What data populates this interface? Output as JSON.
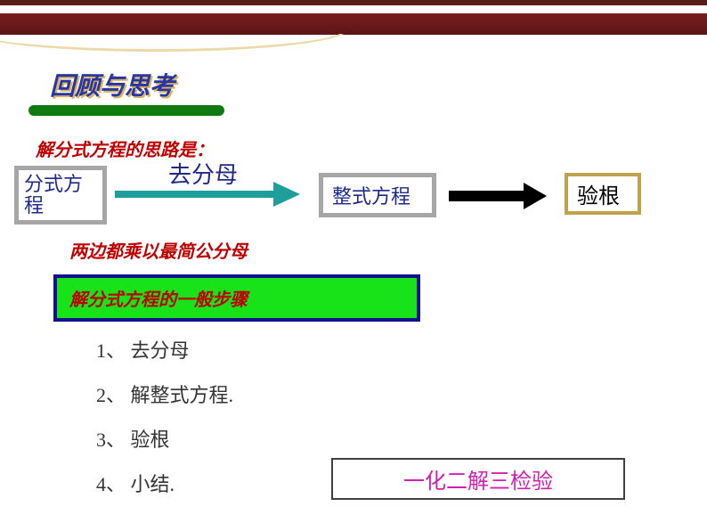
{
  "header": {
    "top_stripe_color": "#5c1b1b",
    "main_stripe_color": "#7a1f1f",
    "arc_color": "#ecd9a7"
  },
  "title": {
    "text": "回顾与思考",
    "color": "#2935a0",
    "shadow_color": "#d9b562",
    "fontsize": 28,
    "underline_color": "#0f7a0f"
  },
  "intro": {
    "text": "解分式方程的思路是：",
    "color": "#c00000",
    "fontsize": 20
  },
  "flow": {
    "box1": {
      "text": "分式方程",
      "border_color": "#a6a6a6",
      "text_color": "#1e2a8a"
    },
    "arrow1": {
      "label": "去分母",
      "color": "#1f9e9e",
      "label_color": "#1e2a8a"
    },
    "box2": {
      "text": "整式方程",
      "border_color": "#a6a6a6",
      "text_color": "#1e2a8a"
    },
    "arrow2": {
      "color": "#000000"
    },
    "box3": {
      "text": "验根",
      "border_color": "#bfa24a",
      "text_color": "#000000"
    }
  },
  "sub_intro": {
    "text": "两边都乘以最简公分母",
    "color": "#c00000",
    "fontsize": 20
  },
  "steps_header": {
    "text": "解分式方程的一般步骤",
    "bg_color": "#18e218",
    "border_color": "#101090",
    "text_color": "#c00000",
    "fontsize": 20
  },
  "steps": {
    "items": [
      "1、  去分母",
      "2、  解整式方程.",
      "3、  验根",
      "4、  小结."
    ],
    "fontsize": 22,
    "color": "#333333"
  },
  "summary": {
    "text": "一化二解三检验",
    "color": "#d020b0",
    "border_color": "#404040",
    "fontsize": 24
  }
}
